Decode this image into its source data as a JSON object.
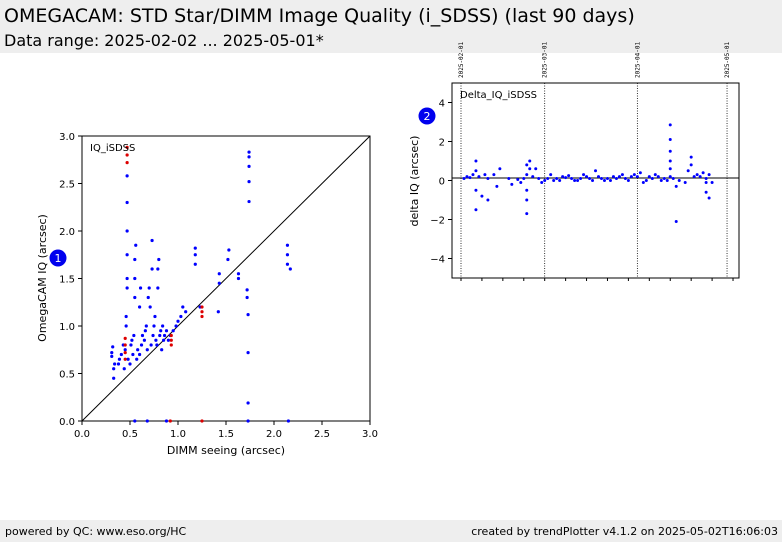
{
  "header": {
    "title": "OMEGACAM: STD Star/DIMM Image Quality (i_SDSS) (last 90 days)",
    "subtitle": "Data range: 2025-02-02 ... 2025-05-01*"
  },
  "footer": {
    "left": "powered by QC: www.eso.org/HC",
    "right": "created by trendPlotter v4.1.2 on 2025-05-02T16:06:03"
  },
  "colors": {
    "points": "#0000ff",
    "highlight": "#dd0000",
    "badge": "#0000ee",
    "header_bg": "#eeeeee"
  },
  "chart_data": [
    {
      "id": 1,
      "type": "scatter",
      "badge": "1",
      "label": "IQ_iSDSS",
      "xlabel": "DIMM seeing (arcsec)",
      "ylabel": "OmegaCAM IQ (arcsec)",
      "xlim": [
        0.0,
        3.0
      ],
      "ylim": [
        0.0,
        3.0
      ],
      "xticks": [
        "0.0",
        "0.5",
        "1.0",
        "1.5",
        "2.0",
        "2.5",
        "3.0"
      ],
      "yticks": [
        "0.0",
        "0.5",
        "1.0",
        "1.5",
        "2.0",
        "2.5",
        "3.0"
      ],
      "diagonal": true,
      "series": [
        {
          "color": "blue",
          "points": [
            [
              0.31,
              0.68
            ],
            [
              0.31,
              0.72
            ],
            [
              0.32,
              0.78
            ],
            [
              0.33,
              0.45
            ],
            [
              0.33,
              0.55
            ],
            [
              0.34,
              0.6
            ],
            [
              0.38,
              0.6
            ],
            [
              0.39,
              0.65
            ],
            [
              0.41,
              0.7
            ],
            [
              0.43,
              0.8
            ],
            [
              0.44,
              0.55
            ],
            [
              0.45,
              0.75
            ],
            [
              0.46,
              1.0
            ],
            [
              0.46,
              1.1
            ],
            [
              0.47,
              1.4
            ],
            [
              0.47,
              1.5
            ],
            [
              0.47,
              1.75
            ],
            [
              0.47,
              2.0
            ],
            [
              0.47,
              2.3
            ],
            [
              0.47,
              2.58
            ],
            [
              0.48,
              0.65
            ],
            [
              0.5,
              0.6
            ],
            [
              0.51,
              0.8
            ],
            [
              0.52,
              0.85
            ],
            [
              0.53,
              0.7
            ],
            [
              0.54,
              0.9
            ],
            [
              0.55,
              1.3
            ],
            [
              0.55,
              1.5
            ],
            [
              0.55,
              1.7
            ],
            [
              0.56,
              1.85
            ],
            [
              0.57,
              0.65
            ],
            [
              0.58,
              0.75
            ],
            [
              0.6,
              0.7
            ],
            [
              0.6,
              1.2
            ],
            [
              0.61,
              1.4
            ],
            [
              0.62,
              0.8
            ],
            [
              0.63,
              0.9
            ],
            [
              0.65,
              0.85
            ],
            [
              0.66,
              0.95
            ],
            [
              0.67,
              1.0
            ],
            [
              0.68,
              0.75
            ],
            [
              0.69,
              1.3
            ],
            [
              0.7,
              1.4
            ],
            [
              0.71,
              1.2
            ],
            [
              0.72,
              0.8
            ],
            [
              0.73,
              1.6
            ],
            [
              0.73,
              1.9
            ],
            [
              0.74,
              0.9
            ],
            [
              0.75,
              1.0
            ],
            [
              0.76,
              1.1
            ],
            [
              0.77,
              0.85
            ],
            [
              0.78,
              0.8
            ],
            [
              0.79,
              1.4
            ],
            [
              0.79,
              1.6
            ],
            [
              0.8,
              1.7
            ],
            [
              0.81,
              0.9
            ],
            [
              0.82,
              0.95
            ],
            [
              0.83,
              0.75
            ],
            [
              0.84,
              1.0
            ],
            [
              0.85,
              0.85
            ],
            [
              0.86,
              0.9
            ],
            [
              0.88,
              0.95
            ],
            [
              0.9,
              0.85
            ],
            [
              0.92,
              0.9
            ],
            [
              0.95,
              0.95
            ],
            [
              0.98,
              1.0
            ],
            [
              1.0,
              1.05
            ],
            [
              1.03,
              1.1
            ],
            [
              1.05,
              1.2
            ],
            [
              1.08,
              1.15
            ],
            [
              1.18,
              1.65
            ],
            [
              1.18,
              1.75
            ],
            [
              1.18,
              1.82
            ],
            [
              1.23,
              1.2
            ],
            [
              1.42,
              1.15
            ],
            [
              1.43,
              1.45
            ],
            [
              1.43,
              1.55
            ],
            [
              1.52,
              1.7
            ],
            [
              1.53,
              1.8
            ],
            [
              1.63,
              1.5
            ],
            [
              1.63,
              1.55
            ],
            [
              1.72,
              1.3
            ],
            [
              1.72,
              1.38
            ],
            [
              1.73,
              0.72
            ],
            [
              1.73,
              0.19
            ],
            [
              1.73,
              1.12
            ],
            [
              1.74,
              2.31
            ],
            [
              1.74,
              2.52
            ],
            [
              1.74,
              2.68
            ],
            [
              1.74,
              2.78
            ],
            [
              1.74,
              2.83
            ],
            [
              2.14,
              1.65
            ],
            [
              2.14,
              1.75
            ],
            [
              2.14,
              1.85
            ],
            [
              2.17,
              1.6
            ],
            [
              0.55,
              0.0
            ],
            [
              0.68,
              0.0
            ],
            [
              0.88,
              0.0
            ],
            [
              1.73,
              0.0
            ],
            [
              2.15,
              0.0
            ]
          ]
        },
        {
          "color": "red",
          "points": [
            [
              0.45,
              0.65
            ],
            [
              0.45,
              0.72
            ],
            [
              0.45,
              0.8
            ],
            [
              0.45,
              0.87
            ],
            [
              0.47,
              2.72
            ],
            [
              0.47,
              2.8
            ],
            [
              0.47,
              2.88
            ],
            [
              0.93,
              0.8
            ],
            [
              0.93,
              0.85
            ],
            [
              0.93,
              0.9
            ],
            [
              1.25,
              1.1
            ],
            [
              1.25,
              1.15
            ],
            [
              1.25,
              1.2
            ],
            [
              0.92,
              0.0
            ],
            [
              1.25,
              0.0
            ]
          ]
        }
      ]
    },
    {
      "id": 2,
      "type": "scatter",
      "badge": "2",
      "label": "Delta_IQ_iSDSS",
      "xlabel": "",
      "ylabel": "delta IQ (arcsec)",
      "xlim": [
        "2025-02-01",
        "2025-05-05"
      ],
      "ylim": [
        -5.0,
        5.0
      ],
      "yticks": [
        "4",
        "2",
        "0",
        "−2",
        "−4"
      ],
      "month_markers": [
        "2025-02-01",
        "2025-03-01",
        "2025-04-01",
        "2025-05-01"
      ],
      "series": [
        {
          "color": "blue",
          "points": [
            [
              "2025-02-02",
              0.1
            ],
            [
              "2025-02-03",
              0.2
            ],
            [
              "2025-02-04",
              0.15
            ],
            [
              "2025-02-05",
              0.3
            ],
            [
              "2025-02-06",
              0.5
            ],
            [
              "2025-02-06",
              1.0
            ],
            [
              "2025-02-06",
              -0.5
            ],
            [
              "2025-02-06",
              -1.5
            ],
            [
              "2025-02-07",
              0.2
            ],
            [
              "2025-02-08",
              -0.8
            ],
            [
              "2025-02-09",
              0.3
            ],
            [
              "2025-02-10",
              -1.0
            ],
            [
              "2025-02-10",
              0.1
            ],
            [
              "2025-02-12",
              0.3
            ],
            [
              "2025-02-13",
              -0.3
            ],
            [
              "2025-02-14",
              0.6
            ],
            [
              "2025-02-17",
              0.1
            ],
            [
              "2025-02-18",
              -0.2
            ],
            [
              "2025-02-20",
              0.05
            ],
            [
              "2025-02-21",
              -0.1
            ],
            [
              "2025-02-22",
              0.1
            ],
            [
              "2025-02-23",
              0.3
            ],
            [
              "2025-02-23",
              0.8
            ],
            [
              "2025-02-23",
              -0.5
            ],
            [
              "2025-02-23",
              -1.0
            ],
            [
              "2025-02-23",
              -1.7
            ],
            [
              "2025-02-24",
              0.6
            ],
            [
              "2025-02-24",
              1.0
            ],
            [
              "2025-02-25",
              0.2
            ],
            [
              "2025-02-26",
              0.6
            ],
            [
              "2025-02-27",
              0.1
            ],
            [
              "2025-02-28",
              -0.1
            ],
            [
              "2025-03-01",
              0.0
            ],
            [
              "2025-03-02",
              0.1
            ],
            [
              "2025-03-03",
              0.3
            ],
            [
              "2025-03-04",
              0.0
            ],
            [
              "2025-03-05",
              0.1
            ],
            [
              "2025-03-06",
              0.0
            ],
            [
              "2025-03-07",
              0.2
            ],
            [
              "2025-03-08",
              0.15
            ],
            [
              "2025-03-09",
              0.25
            ],
            [
              "2025-03-10",
              0.1
            ],
            [
              "2025-03-11",
              0.0
            ],
            [
              "2025-03-12",
              0.0
            ],
            [
              "2025-03-13",
              0.1
            ],
            [
              "2025-03-14",
              0.3
            ],
            [
              "2025-03-15",
              0.2
            ],
            [
              "2025-03-16",
              0.1
            ],
            [
              "2025-03-17",
              0.0
            ],
            [
              "2025-03-18",
              0.5
            ],
            [
              "2025-03-19",
              0.2
            ],
            [
              "2025-03-20",
              0.1
            ],
            [
              "2025-03-21",
              0.0
            ],
            [
              "2025-03-22",
              0.1
            ],
            [
              "2025-03-23",
              0.0
            ],
            [
              "2025-03-24",
              0.2
            ],
            [
              "2025-03-25",
              0.1
            ],
            [
              "2025-03-26",
              0.2
            ],
            [
              "2025-03-27",
              0.3
            ],
            [
              "2025-03-28",
              0.1
            ],
            [
              "2025-03-29",
              0.0
            ],
            [
              "2025-03-30",
              0.2
            ],
            [
              "2025-03-31",
              0.3
            ],
            [
              "2025-04-01",
              0.2
            ],
            [
              "2025-04-02",
              0.4
            ],
            [
              "2025-04-03",
              -0.1
            ],
            [
              "2025-04-04",
              0.0
            ],
            [
              "2025-04-05",
              0.2
            ],
            [
              "2025-04-06",
              0.1
            ],
            [
              "2025-04-07",
              0.3
            ],
            [
              "2025-04-08",
              0.2
            ],
            [
              "2025-04-09",
              0.0
            ],
            [
              "2025-04-10",
              0.1
            ],
            [
              "2025-04-11",
              0.0
            ],
            [
              "2025-04-12",
              0.2
            ],
            [
              "2025-04-12",
              0.6
            ],
            [
              "2025-04-12",
              1.0
            ],
            [
              "2025-04-12",
              1.5
            ],
            [
              "2025-04-12",
              2.1
            ],
            [
              "2025-04-12",
              2.85
            ],
            [
              "2025-04-13",
              0.1
            ],
            [
              "2025-04-14",
              -2.1
            ],
            [
              "2025-04-14",
              -0.3
            ],
            [
              "2025-04-15",
              0.0
            ],
            [
              "2025-04-17",
              -0.1
            ],
            [
              "2025-04-18",
              0.5
            ],
            [
              "2025-04-19",
              0.8
            ],
            [
              "2025-04-19",
              1.2
            ],
            [
              "2025-04-20",
              0.2
            ],
            [
              "2025-04-21",
              0.3
            ],
            [
              "2025-04-22",
              0.2
            ],
            [
              "2025-04-23",
              0.4
            ],
            [
              "2025-04-24",
              0.1
            ],
            [
              "2025-04-24",
              -0.1
            ],
            [
              "2025-04-24",
              -0.6
            ],
            [
              "2025-04-25",
              -0.9
            ],
            [
              "2025-04-25",
              0.3
            ],
            [
              "2025-04-26",
              -0.1
            ]
          ]
        }
      ]
    }
  ]
}
